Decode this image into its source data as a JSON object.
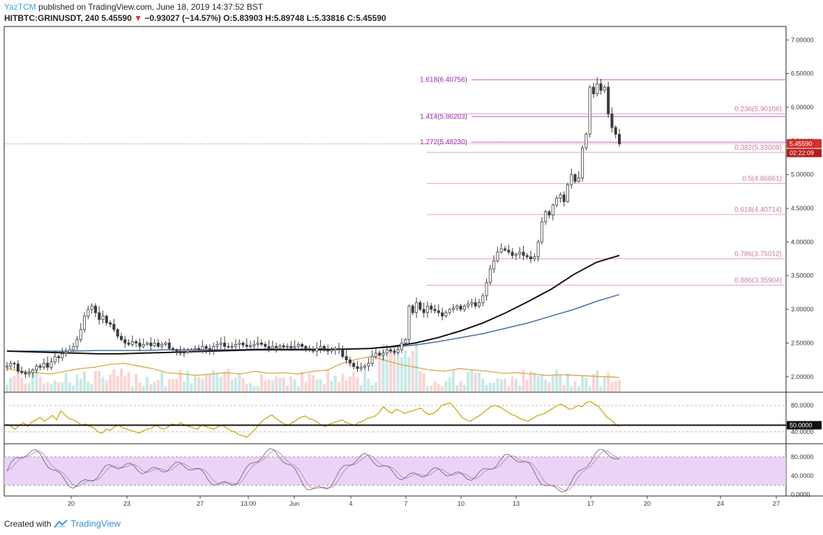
{
  "header": {
    "user": "YazTCM",
    "published": " published on TradingView.com, June 18, 2019 14:37:52 BST"
  },
  "info": {
    "symbol": "HITBTC:GRINUSDT, 240",
    "price": "5.45590",
    "change_arrow": "▼",
    "change": "−0.93027 (−14.57%)",
    "ohlc": "O:5.83903 H:5.89748 L:5.33816 C:5.45590"
  },
  "footer": {
    "created_with": "Created with",
    "brand": "TradingView"
  },
  "colors": {
    "up": "#26a69a",
    "down": "#ef5350",
    "candle": "#3a3a3a",
    "ma_black": "#111111",
    "ma_blue": "#4a6aa8",
    "ma_orange": "#d9a441",
    "rsi": "#c8a814",
    "fib_projection": "#c060c0",
    "fib_retrace": "#e0a0c0",
    "stoch_band": "#e6c8f5",
    "price_tag": "#d32f2f"
  },
  "chart_data": {
    "type": "candlestick",
    "price_axis": {
      "ticks": [
        "7.00000",
        "6.50000",
        "6.00000",
        "5.50000",
        "5.00000",
        "4.50000",
        "4.00000",
        "3.50000",
        "3.00000",
        "2.50000",
        "2.00000"
      ],
      "tick_values": [
        7.0,
        6.5,
        6.0,
        5.5,
        5.0,
        4.5,
        4.0,
        3.5,
        3.0,
        2.5,
        2.0
      ],
      "range": [
        1.77,
        7.2
      ]
    },
    "current_price": {
      "value": 5.4559,
      "label": "5.45590",
      "countdown": "02:22:09"
    },
    "time_axis": {
      "labels": [
        "20",
        "23",
        "27",
        "13:00",
        "Jun",
        "4",
        "7",
        "10",
        "13",
        "17",
        "20",
        "24",
        "27"
      ]
    },
    "fib_extension": [
      {
        "label": "1.618(6.40756)",
        "value": 6.40756
      },
      {
        "label": "1.414(5.86203)",
        "value": 5.86203
      },
      {
        "label": "1.272(5.48230)",
        "value": 5.4823
      }
    ],
    "fib_retracement": [
      {
        "label": "0.236(5.90106)",
        "value": 5.90106
      },
      {
        "label": "0.382(5.33009)",
        "value": 5.33009
      },
      {
        "label": "0.5(4.86861)",
        "value": 4.86861
      },
      {
        "label": "0.618(4.40714)",
        "value": 4.40714
      },
      {
        "label": "0.786(3.75012)",
        "value": 3.75012
      },
      {
        "label": "0.886(3.35904)",
        "value": 3.35904
      }
    ],
    "rsi": {
      "ticks": [
        "80.0000",
        "40.0000"
      ],
      "tick_values": [
        80,
        40
      ],
      "level_label": "50.0000",
      "level": 50,
      "range": [
        22,
        100
      ]
    },
    "stoch": {
      "ticks": [
        "80.0000",
        "40.0000",
        "0.0000"
      ],
      "tick_values": [
        80,
        40,
        0
      ],
      "band": [
        20,
        80
      ],
      "range": [
        -3,
        108
      ]
    },
    "price_series": [
      2.16,
      2.2,
      2.19,
      2.08,
      2.06,
      2.04,
      2.06,
      2.1,
      2.16,
      2.14,
      2.2,
      2.14,
      2.22,
      2.3,
      2.28,
      2.34,
      2.36,
      2.4,
      2.45,
      2.55,
      2.7,
      2.9,
      3.0,
      3.05,
      2.95,
      2.85,
      2.9,
      2.8,
      2.78,
      2.7,
      2.6,
      2.55,
      2.5,
      2.48,
      2.52,
      2.5,
      2.45,
      2.48,
      2.5,
      2.46,
      2.5,
      2.45,
      2.48,
      2.5,
      2.42,
      2.4,
      2.38,
      2.35,
      2.36,
      2.38,
      2.4,
      2.42,
      2.4,
      2.45,
      2.42,
      2.4,
      2.45,
      2.48,
      2.5,
      2.45,
      2.44,
      2.45,
      2.48,
      2.5,
      2.47,
      2.45,
      2.46,
      2.48,
      2.5,
      2.48,
      2.45,
      2.42,
      2.45,
      2.43,
      2.46,
      2.44,
      2.45,
      2.43,
      2.45,
      2.48,
      2.45,
      2.42,
      2.4,
      2.38,
      2.42,
      2.45,
      2.4,
      2.38,
      2.4,
      2.42,
      2.4,
      2.3,
      2.25,
      2.2,
      2.15,
      2.12,
      2.14,
      2.16,
      2.2,
      2.3,
      2.35,
      2.32,
      2.35,
      2.4,
      2.38,
      2.36,
      2.4,
      2.5,
      2.55,
      3.05,
      2.95,
      3.1,
      3.0,
      2.95,
      3.05,
      3.0,
      2.98,
      2.95,
      2.9,
      2.95,
      3.0,
      3.02,
      3.05,
      3.0,
      3.05,
      3.08,
      3.1,
      3.05,
      3.1,
      3.2,
      3.4,
      3.6,
      3.72,
      3.85,
      3.9,
      3.88,
      3.85,
      3.8,
      3.82,
      3.85,
      3.8,
      3.78,
      3.75,
      3.78,
      4.0,
      4.3,
      4.45,
      4.4,
      4.55,
      4.65,
      4.7,
      4.6,
      4.85,
      5.0,
      4.9,
      4.95,
      5.4,
      5.6,
      6.3,
      6.2,
      6.35,
      6.25,
      6.3,
      5.9,
      5.7,
      5.6,
      5.4559
    ],
    "ma_black": [
      2.38,
      2.37,
      2.36,
      2.35,
      2.34,
      2.34,
      2.35,
      2.36,
      2.37,
      2.38,
      2.39,
      2.4,
      2.4,
      2.4,
      2.4,
      2.41,
      2.42,
      2.45,
      2.5,
      2.58,
      2.68,
      2.8,
      2.95,
      3.12,
      3.3,
      3.52,
      3.7,
      3.8
    ],
    "ma_blue": [
      2.38,
      2.38,
      2.38,
      2.38,
      2.39,
      2.39,
      2.39,
      2.4,
      2.4,
      2.4,
      2.4,
      2.41,
      2.41,
      2.41,
      2.41,
      2.41,
      2.42,
      2.44,
      2.47,
      2.52,
      2.58,
      2.64,
      2.72,
      2.8,
      2.9,
      3.0,
      3.12,
      3.22
    ],
    "ma_orange": [
      2.12,
      2.08,
      2.06,
      2.04,
      2.08,
      2.12,
      2.14,
      2.18,
      2.2,
      2.16,
      2.12,
      2.06,
      2.04,
      2.02,
      2.04,
      2.06,
      2.04,
      2.08,
      2.05,
      2.06,
      2.04,
      2.08,
      2.1,
      2.2,
      2.26,
      2.3,
      2.24,
      2.18,
      2.14,
      2.1,
      2.08,
      2.12,
      2.1,
      2.08,
      2.05,
      2.06,
      2.04,
      2.02,
      2.03,
      2.02,
      2.01,
      2.0,
      1.99
    ],
    "rsi_series": [
      52,
      48,
      44,
      50,
      54,
      48,
      55,
      58,
      62,
      56,
      60,
      65,
      58,
      72,
      66,
      60,
      58,
      55,
      50,
      52,
      48,
      46,
      40,
      38,
      44,
      42,
      48,
      50,
      46,
      44,
      42,
      40,
      38,
      42,
      44,
      46,
      50,
      46,
      44,
      48,
      52,
      50,
      54,
      50,
      48,
      46,
      44,
      50,
      48,
      46,
      44,
      48,
      50,
      46,
      42,
      40,
      36,
      34,
      32,
      38,
      44,
      52,
      58,
      62,
      66,
      60,
      56,
      52,
      50,
      54,
      58,
      62,
      64,
      60,
      58,
      55,
      50,
      48,
      52,
      54,
      56,
      58,
      54,
      52,
      50,
      54,
      56,
      60,
      62,
      64,
      70,
      78,
      72,
      68,
      74,
      72,
      68,
      70,
      72,
      74,
      76,
      70,
      66,
      68,
      72,
      80,
      82,
      84,
      78,
      70,
      62,
      58,
      56,
      60,
      64,
      68,
      74,
      78,
      80,
      78,
      74,
      70,
      66,
      64,
      60,
      58,
      56,
      60,
      64,
      66,
      68,
      72,
      76,
      80,
      82,
      78,
      74,
      76,
      80,
      78,
      84,
      86,
      82,
      78,
      70,
      62,
      58,
      52,
      48
    ]
  }
}
